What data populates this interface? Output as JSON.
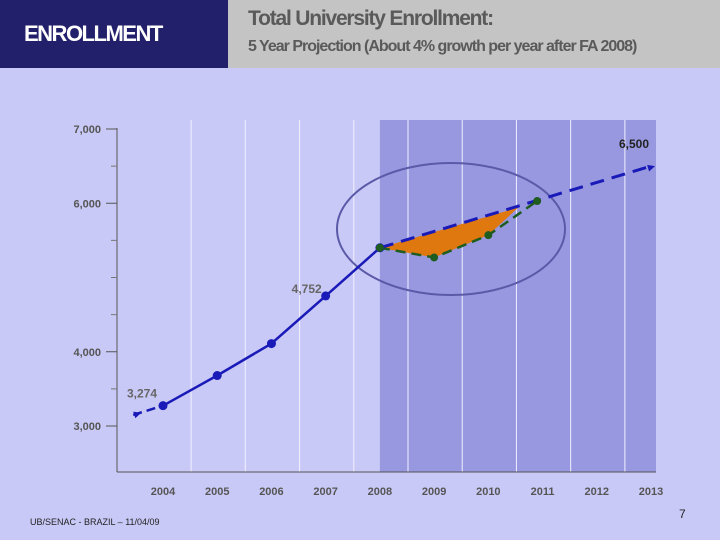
{
  "header": {
    "section": "ENROLLMENT",
    "title": "Total University Enrollment:",
    "subtitle": "5 Year Projection (About 4% growth per year after FA 2008)"
  },
  "footer": {
    "text": "UB/SENAC - BRAZIL – 11/04/09",
    "page": "7"
  },
  "colors": {
    "actual_line": "#1a1ab8",
    "projection_line": "#1a1ab8",
    "alternate_line": "#1f5c1f",
    "gap_fill": "#e07810",
    "projection_band": "#9898e0",
    "circle": "#5a5aa8"
  },
  "chart_data": {
    "type": "line",
    "title": "Total University Enrollment:",
    "subtitle": "5 Year Projection (About 4% growth per year after FA 2008)",
    "xlabel": "",
    "ylabel": "",
    "x_ticks": [
      "2004",
      "2005",
      "2006",
      "2007",
      "2008",
      "2009",
      "2010",
      "2011",
      "2012",
      "2013"
    ],
    "y_ticks": [
      "3,000",
      "4,000",
      "6,000",
      "7,000"
    ],
    "ylim": [
      2500,
      7000
    ],
    "shaded_region": [
      "2008",
      "2013"
    ],
    "series": [
      {
        "style": "solid",
        "points": [
          {
            "x": 2003.45,
            "y": 3150
          },
          {
            "x": 2004,
            "y": 3274
          },
          {
            "x": 2005,
            "y": 3680
          },
          {
            "x": 2006,
            "y": 4110
          },
          {
            "x": 2007,
            "y": 4752
          },
          {
            "x": 2008,
            "y": 5400
          }
        ]
      },
      {
        "style": "dashed",
        "points": [
          {
            "x": 2008,
            "y": 5400
          },
          {
            "x": 2013,
            "y": 6500
          }
        ]
      },
      {
        "style": "dashed",
        "points": [
          {
            "x": 2008,
            "y": 5400
          },
          {
            "x": 2009,
            "y": 5270
          },
          {
            "x": 2010,
            "y": 5570
          },
          {
            "x": 2010.9,
            "y": 6030
          }
        ]
      }
    ],
    "data_labels": [
      {
        "x": 2004,
        "y": 3274,
        "text": "3,274"
      },
      {
        "x": 2007,
        "y": 4752,
        "text": "4,752"
      },
      {
        "x": 2013,
        "y": 6500,
        "text": "6,500"
      }
    ]
  }
}
